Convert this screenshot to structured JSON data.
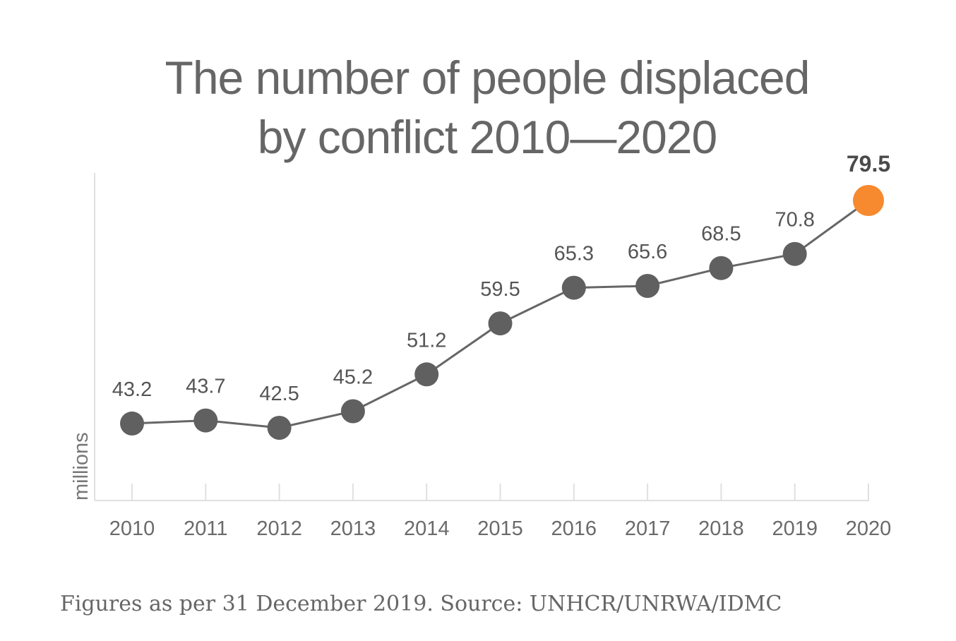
{
  "chart_data": {
    "type": "line",
    "title": [
      "The number of people displaced",
      "by conflict 2010—2020"
    ],
    "ylabel": "millions",
    "x": [
      "2010",
      "2011",
      "2012",
      "2013",
      "2014",
      "2015",
      "2016",
      "2017",
      "2018",
      "2019",
      "2020"
    ],
    "values": [
      43.2,
      43.7,
      42.5,
      45.2,
      51.2,
      59.5,
      65.3,
      65.6,
      68.5,
      70.8,
      79.5
    ],
    "labels": [
      "43.2",
      "43.7",
      "42.5",
      "45.2",
      "51.2",
      "59.5",
      "65.3",
      "65.6",
      "68.5",
      "70.8",
      "79.5"
    ],
    "highlight_index": 10,
    "colors": {
      "line": "#666666",
      "marker": "#606060",
      "highlight": "#f7892e",
      "axis": "#e0e0e0"
    },
    "grid": false,
    "legend": "none"
  },
  "caption": "Figures as per 31 December 2019. Source: UNHCR/UNRWA/IDMC"
}
